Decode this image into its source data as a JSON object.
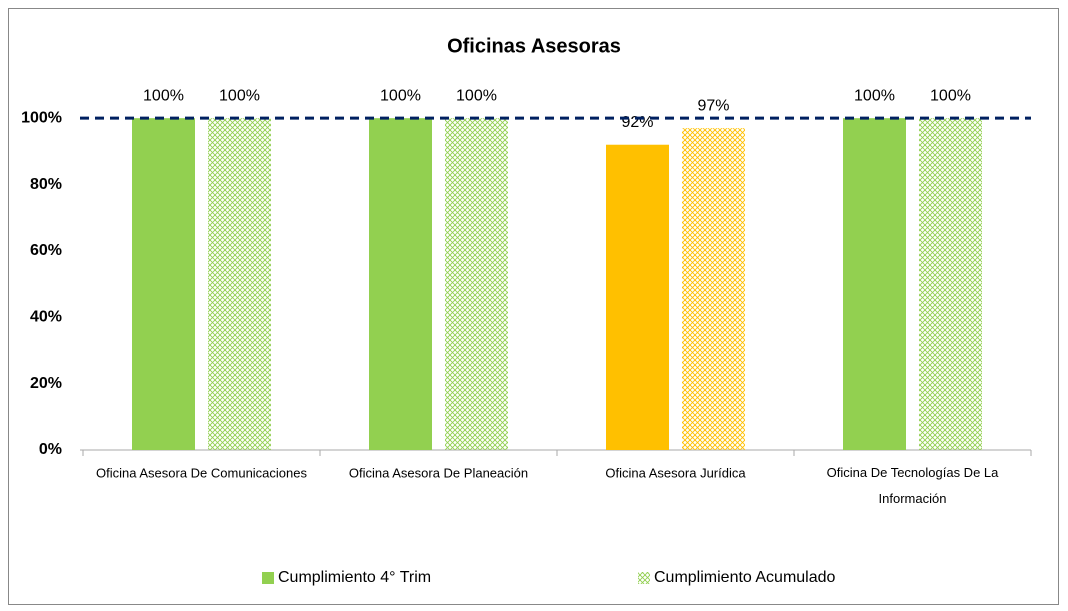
{
  "chart_data": {
    "type": "bar",
    "title": "Oficinas Asesoras",
    "categories": [
      "Oficina Asesora De Comunicaciones",
      "Oficina Asesora De Planeación",
      "Oficina Asesora Jurídica",
      "Oficina De Tecnologías De La Información"
    ],
    "series": [
      {
        "name": "Cumplimiento 4° Trim",
        "color": "#92d050",
        "colors": [
          "#92d050",
          "#92d050",
          "#ffc000",
          "#92d050"
        ],
        "pattern": "solid",
        "values": [
          100,
          100,
          92,
          100
        ],
        "value_labels": [
          "100%",
          "100%",
          "92%",
          "100%"
        ]
      },
      {
        "name": "Cumplimiento Acumulado",
        "color": "#92d050",
        "colors": [
          "#92d050",
          "#92d050",
          "#ffc000",
          "#92d050"
        ],
        "pattern": "hatch",
        "values": [
          100,
          100,
          97,
          100
        ],
        "value_labels": [
          "100%",
          "100%",
          "97%",
          "100%"
        ]
      }
    ],
    "target": 100,
    "target_color": "#002060",
    "ylim": [
      0,
      110
    ],
    "yticks": [
      {
        "value": 0,
        "label": "0%"
      },
      {
        "value": 20,
        "label": "20%"
      },
      {
        "value": 40,
        "label": "40%"
      },
      {
        "value": 60,
        "label": "60%"
      },
      {
        "value": 80,
        "label": "80%"
      },
      {
        "value": 100,
        "label": "100%"
      }
    ],
    "grid": false,
    "legend": "bottom"
  }
}
